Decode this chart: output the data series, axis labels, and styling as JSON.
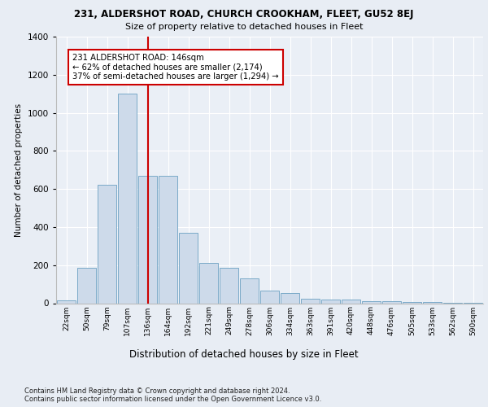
{
  "title_line1": "231, ALDERSHOT ROAD, CHURCH CROOKHAM, FLEET, GU52 8EJ",
  "title_line2": "Size of property relative to detached houses in Fleet",
  "xlabel": "Distribution of detached houses by size in Fleet",
  "ylabel": "Number of detached properties",
  "bar_color": "#cddaea",
  "bar_edge_color": "#7aaac8",
  "vline_color": "#cc0000",
  "vline_x_idx": 4,
  "annotation_text": "231 ALDERSHOT ROAD: 146sqm\n← 62% of detached houses are smaller (2,174)\n37% of semi-detached houses are larger (1,294) →",
  "categories": [
    "22sqm",
    "50sqm",
    "79sqm",
    "107sqm",
    "136sqm",
    "164sqm",
    "192sqm",
    "221sqm",
    "249sqm",
    "278sqm",
    "306sqm",
    "334sqm",
    "363sqm",
    "391sqm",
    "420sqm",
    "448sqm",
    "476sqm",
    "505sqm",
    "533sqm",
    "562sqm",
    "590sqm"
  ],
  "bar_heights": [
    15,
    185,
    620,
    1100,
    670,
    670,
    370,
    210,
    185,
    130,
    65,
    55,
    25,
    20,
    18,
    12,
    10,
    8,
    5,
    4,
    4
  ],
  "ylim": [
    0,
    1400
  ],
  "yticks": [
    0,
    200,
    400,
    600,
    800,
    1000,
    1200,
    1400
  ],
  "background_color": "#e8edf4",
  "plot_bg_color": "#eaeff6",
  "grid_color": "#ffffff",
  "footer_text": "Contains HM Land Registry data © Crown copyright and database right 2024.\nContains public sector information licensed under the Open Government Licence v3.0.",
  "figsize": [
    6.0,
    5.0
  ],
  "dpi": 100
}
